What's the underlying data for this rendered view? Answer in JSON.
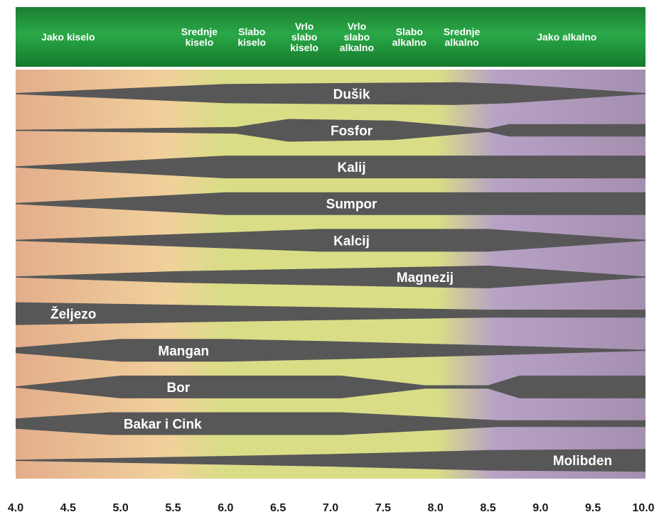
{
  "chart_data": {
    "type": "area",
    "x_axis": {
      "min": 4.0,
      "max": 10.0,
      "ticks": [
        "4.0",
        "4.5",
        "5.0",
        "5.5",
        "6.0",
        "6.5",
        "7.0",
        "7.5",
        "8.0",
        "8.5",
        "9.0",
        "9.5",
        "10.0"
      ]
    },
    "background_colors": {
      "acid": "#e3ad8c",
      "neutral": "#d9dd86",
      "alkaline": "#b7a2c6",
      "header_green": "#1f9a3c",
      "band": "#575757"
    },
    "ph_ranges": [
      {
        "lines": [
          "Jako kiselo"
        ],
        "from": 4.0,
        "to": 5.0
      },
      {
        "lines": [
          "Srednje",
          "kiselo"
        ],
        "from": 5.5,
        "to": 6.0
      },
      {
        "lines": [
          "Slabo",
          "kiselo"
        ],
        "from": 6.0,
        "to": 6.5
      },
      {
        "lines": [
          "Vrlo",
          "slabo",
          "kiselo"
        ],
        "from": 6.5,
        "to": 7.0
      },
      {
        "lines": [
          "Vrlo",
          "slabo",
          "alkalno"
        ],
        "from": 7.0,
        "to": 7.5
      },
      {
        "lines": [
          "Slabo",
          "alkalno"
        ],
        "from": 7.5,
        "to": 8.0
      },
      {
        "lines": [
          "Srednje",
          "alkalno"
        ],
        "from": 8.0,
        "to": 8.5
      },
      {
        "lines": [
          "Jako alkalno"
        ],
        "from": 8.5,
        "to": 10.0
      }
    ],
    "series": [
      {
        "name": "Dušik",
        "label_x": 7.2,
        "points": [
          [
            4.0,
            0.05
          ],
          [
            6.0,
            0.85
          ],
          [
            8.2,
            1.0
          ],
          [
            8.7,
            0.85
          ],
          [
            10.0,
            0.05
          ]
        ]
      },
      {
        "name": "Fosfor",
        "label_x": 7.2,
        "points": [
          [
            4.0,
            0.05
          ],
          [
            6.1,
            0.3
          ],
          [
            6.6,
            1.0
          ],
          [
            7.6,
            0.85
          ],
          [
            8.5,
            0.15
          ],
          [
            8.7,
            0.55
          ],
          [
            10.0,
            0.55
          ]
        ]
      },
      {
        "name": "Kalij",
        "label_x": 7.2,
        "points": [
          [
            4.0,
            0.05
          ],
          [
            6.0,
            1.0
          ],
          [
            10.0,
            1.0
          ]
        ]
      },
      {
        "name": "Sumpor",
        "label_x": 7.2,
        "points": [
          [
            4.0,
            0.05
          ],
          [
            6.0,
            1.0
          ],
          [
            10.0,
            1.0
          ]
        ]
      },
      {
        "name": "Kalcij",
        "label_x": 7.2,
        "points": [
          [
            4.0,
            0.05
          ],
          [
            6.0,
            0.7
          ],
          [
            6.9,
            1.0
          ],
          [
            8.5,
            1.0
          ],
          [
            10.0,
            0.05
          ]
        ]
      },
      {
        "name": "Magnezij",
        "label_x": 7.9,
        "points": [
          [
            4.0,
            0.05
          ],
          [
            5.5,
            0.5
          ],
          [
            7.0,
            0.75
          ],
          [
            8.5,
            1.0
          ],
          [
            10.0,
            0.05
          ]
        ]
      },
      {
        "name": "Željezo",
        "label_x": 4.55,
        "points": [
          [
            4.0,
            1.0
          ],
          [
            8.5,
            0.35
          ],
          [
            10.0,
            0.35
          ]
        ]
      },
      {
        "name": "Mangan",
        "label_x": 5.6,
        "points": [
          [
            4.0,
            0.25
          ],
          [
            5.0,
            1.0
          ],
          [
            6.0,
            1.0
          ],
          [
            7.0,
            0.8
          ],
          [
            8.5,
            0.45
          ],
          [
            10.0,
            0.05
          ]
        ]
      },
      {
        "name": "Bor",
        "label_x": 5.55,
        "points": [
          [
            4.0,
            0.05
          ],
          [
            5.0,
            1.0
          ],
          [
            7.1,
            1.0
          ],
          [
            7.9,
            0.15
          ],
          [
            8.5,
            0.15
          ],
          [
            8.8,
            1.0
          ],
          [
            10.0,
            1.0
          ]
        ]
      },
      {
        "name": "Bakar i Cink",
        "label_x": 5.4,
        "points": [
          [
            4.0,
            0.45
          ],
          [
            4.9,
            1.0
          ],
          [
            7.1,
            1.0
          ],
          [
            8.6,
            0.3
          ],
          [
            10.0,
            0.3
          ]
        ]
      },
      {
        "name": "Molibden",
        "label_x": 9.4,
        "points": [
          [
            4.0,
            0.05
          ],
          [
            7.0,
            0.55
          ],
          [
            8.5,
            0.9
          ],
          [
            10.0,
            1.0
          ]
        ]
      }
    ]
  }
}
